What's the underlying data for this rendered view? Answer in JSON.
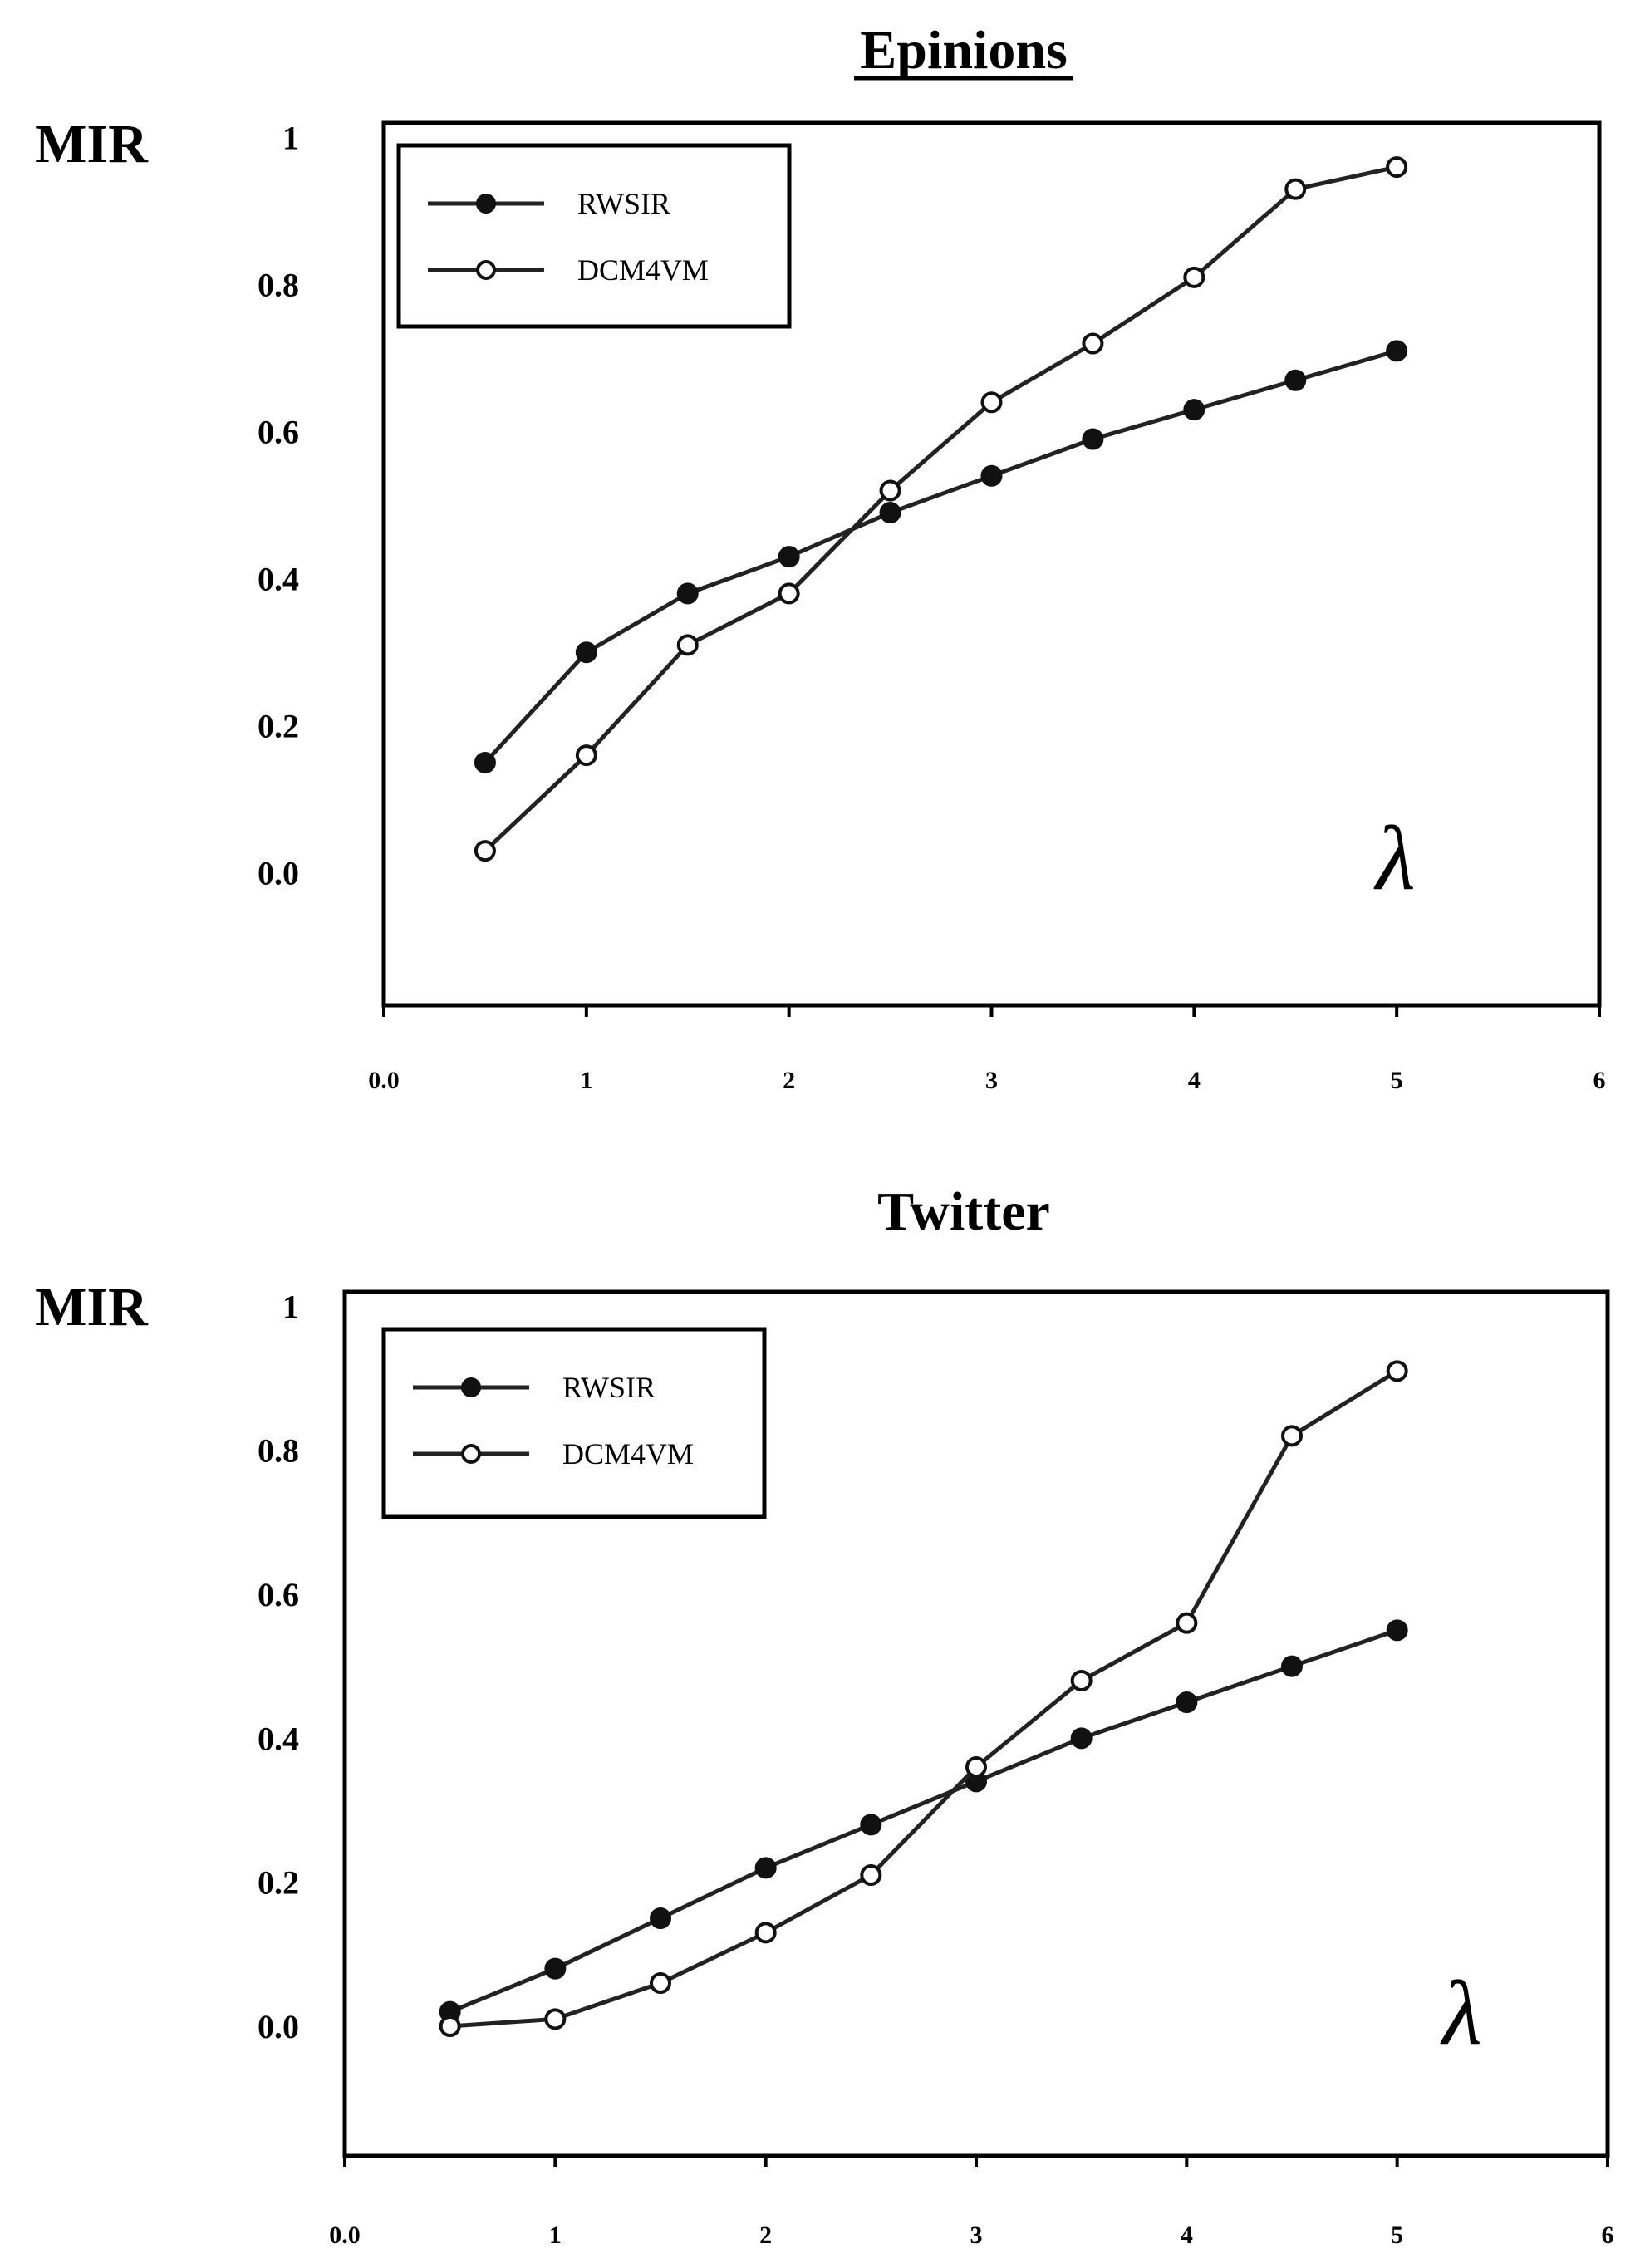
{
  "chart_data": [
    {
      "type": "line",
      "title": "Epinions",
      "ylabel": "MIR",
      "xlabel": "",
      "annotation": "λ",
      "x_tick_labels": [
        "0.0",
        "1",
        "2",
        "3",
        "4",
        "5",
        "6"
      ],
      "y_tick_labels": [
        "0.0",
        "0.2",
        "0.4",
        "0.6",
        "0.8",
        "1"
      ],
      "xlim": [
        0,
        6
      ],
      "ylim": [
        -0.18,
        1.02
      ],
      "grid": false,
      "legend_position": "top-left",
      "x": [
        0.5,
        1,
        1.5,
        2,
        2.5,
        3,
        3.5,
        4,
        4.5,
        5
      ],
      "series": [
        {
          "name": "RWSIR",
          "marker": "filled",
          "values": [
            0.15,
            0.3,
            0.38,
            0.43,
            0.49,
            0.54,
            0.59,
            0.63,
            0.67,
            0.71
          ]
        },
        {
          "name": "DCM4VM",
          "marker": "open",
          "values": [
            0.03,
            0.16,
            0.31,
            0.38,
            0.52,
            0.64,
            0.72,
            0.81,
            0.93,
            0.96
          ]
        }
      ]
    },
    {
      "type": "line",
      "title": "Twitter",
      "ylabel": "MIR",
      "xlabel": "",
      "annotation": "λ",
      "x_tick_labels": [
        "0.0",
        "1",
        "2",
        "3",
        "4",
        "5",
        "6"
      ],
      "y_tick_labels": [
        "0.0",
        "0.2",
        "0.4",
        "0.6",
        "0.8",
        "1"
      ],
      "xlim": [
        0,
        6
      ],
      "ylim": [
        -0.18,
        1.02
      ],
      "grid": false,
      "legend_position": "top-left",
      "x": [
        0.5,
        1,
        1.5,
        2,
        2.5,
        3,
        3.5,
        4,
        4.5,
        5
      ],
      "series": [
        {
          "name": "RWSIR",
          "marker": "filled",
          "values": [
            0.02,
            0.08,
            0.15,
            0.22,
            0.28,
            0.34,
            0.4,
            0.45,
            0.5,
            0.55
          ]
        },
        {
          "name": "DCM4VM",
          "marker": "open",
          "values": [
            0.0,
            0.01,
            0.06,
            0.13,
            0.21,
            0.36,
            0.48,
            0.56,
            0.82,
            0.91
          ]
        }
      ]
    }
  ]
}
